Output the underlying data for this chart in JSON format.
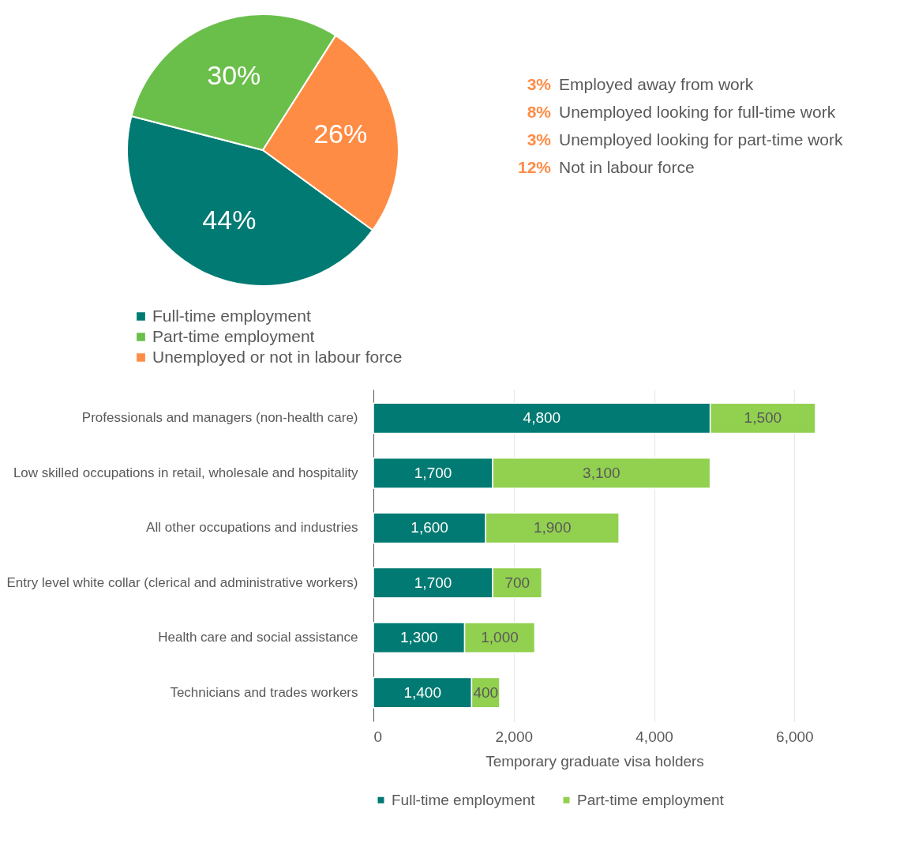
{
  "chart_data": [
    {
      "type": "pie",
      "categories": [
        "Full-time employment",
        "Part-time employment",
        "Unemployed or not in labour force"
      ],
      "values": [
        44,
        30,
        26
      ],
      "colors": [
        "#007a72",
        "#6abf4b",
        "#ff8c45"
      ],
      "value_labels": [
        "44%",
        "30%",
        "26%"
      ],
      "legend": "bottom left",
      "annotations": [
        "3% Employed away from work",
        "8% Unemployed looking for full-time work",
        "3% Unemployed looking for part-time work",
        "12% Not in labour force"
      ]
    },
    {
      "type": "bar",
      "orientation": "horizontal",
      "stacked": true,
      "categories": [
        "Professionals and managers (non-health care)",
        "Low skilled occupations in retail, wholesale and hospitality",
        "All other occupations and industries",
        "Entry level white collar (clerical and administrative workers)",
        "Health care and social assistance",
        "Technicians and trades workers"
      ],
      "series": [
        {
          "name": "Full-time employment",
          "color": "#007a72",
          "values": [
            4800,
            1700,
            1600,
            1700,
            1300,
            1400
          ],
          "value_labels": [
            "4,800",
            "1,700",
            "1,600",
            "1,700",
            "1,300",
            "1,400"
          ]
        },
        {
          "name": "Part-time employment",
          "color": "#92d050",
          "values": [
            1500,
            3100,
            1900,
            700,
            1000,
            400
          ],
          "value_labels": [
            "1,500",
            "3,100",
            "1,900",
            "700",
            "1,000",
            "400"
          ]
        }
      ],
      "xlim": [
        0,
        6300
      ],
      "xticks": [
        0,
        {
          "value": 2000,
          "label": "2,000"
        },
        {
          "value": 4000,
          "label": "4,000"
        },
        {
          "value": 6000,
          "label": "6,000"
        }
      ],
      "xlabel": "Temporary graduate visa holders",
      "grid": "x",
      "legend": "bottom"
    }
  ]
}
